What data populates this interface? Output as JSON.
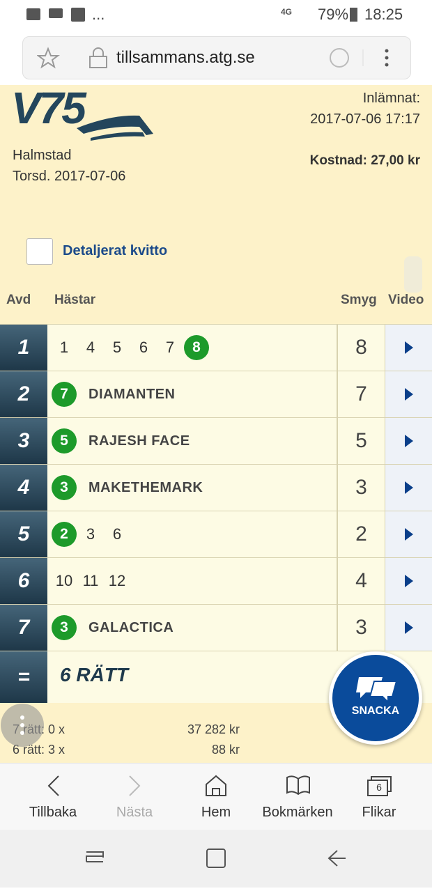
{
  "status_bar": {
    "ellipsis": "...",
    "network": "4G",
    "battery": "79%",
    "time": "18:25"
  },
  "browser": {
    "url": "tillsammans.atg.se"
  },
  "receipt": {
    "logo": "V75",
    "track": "Halmstad",
    "date": "Torsd. 2017-07-06",
    "submitted_label": "Inlämnat:",
    "submitted_time": "2017-07-06 17:17",
    "cost": "Kostnad: 27,00 kr",
    "detailed_label": "Detaljerat kvitto"
  },
  "table": {
    "headers": [
      "Avd",
      "Hästar",
      "Smyg",
      "Video"
    ],
    "rows": [
      {
        "avd": "1",
        "horses": [
          {
            "number": "1"
          },
          {
            "number": "4"
          },
          {
            "number": "5"
          },
          {
            "number": "6"
          },
          {
            "number": "7"
          },
          {
            "number": "8",
            "winner": true
          }
        ],
        "smyg": "8"
      },
      {
        "avd": "2",
        "horses": [
          {
            "number": "7",
            "winner": true,
            "name": "DIAMANTEN"
          }
        ],
        "smyg": "7"
      },
      {
        "avd": "3",
        "horses": [
          {
            "number": "5",
            "winner": true,
            "name": "RAJESH FACE"
          }
        ],
        "smyg": "5"
      },
      {
        "avd": "4",
        "horses": [
          {
            "number": "3",
            "winner": true,
            "name": "MAKETHEMARK"
          }
        ],
        "smyg": "3"
      },
      {
        "avd": "5",
        "horses": [
          {
            "number": "2",
            "winner": true
          },
          {
            "number": "3"
          },
          {
            "number": "6"
          }
        ],
        "smyg": "2"
      },
      {
        "avd": "6",
        "horses": [
          {
            "number": "10"
          },
          {
            "number": "11"
          },
          {
            "number": "12"
          }
        ],
        "smyg": "4"
      },
      {
        "avd": "7",
        "horses": [
          {
            "number": "3",
            "winner": true,
            "name": "GALACTICA"
          }
        ],
        "smyg": "3"
      }
    ],
    "result": {
      "symbol": "=",
      "text": "6 RÄTT"
    }
  },
  "payouts": [
    {
      "label": "7 rätt: 0 x",
      "amount": "37 282 kr"
    },
    {
      "label": "6 rätt: 3 x",
      "amount": "88 kr"
    }
  ],
  "chat_button": "SNACKA",
  "bottom_nav": {
    "back": "Tillbaka",
    "next": "Nästa",
    "home": "Hem",
    "bookmarks": "Bokmärken",
    "tabs": "Flikar",
    "tab_count": "6"
  }
}
